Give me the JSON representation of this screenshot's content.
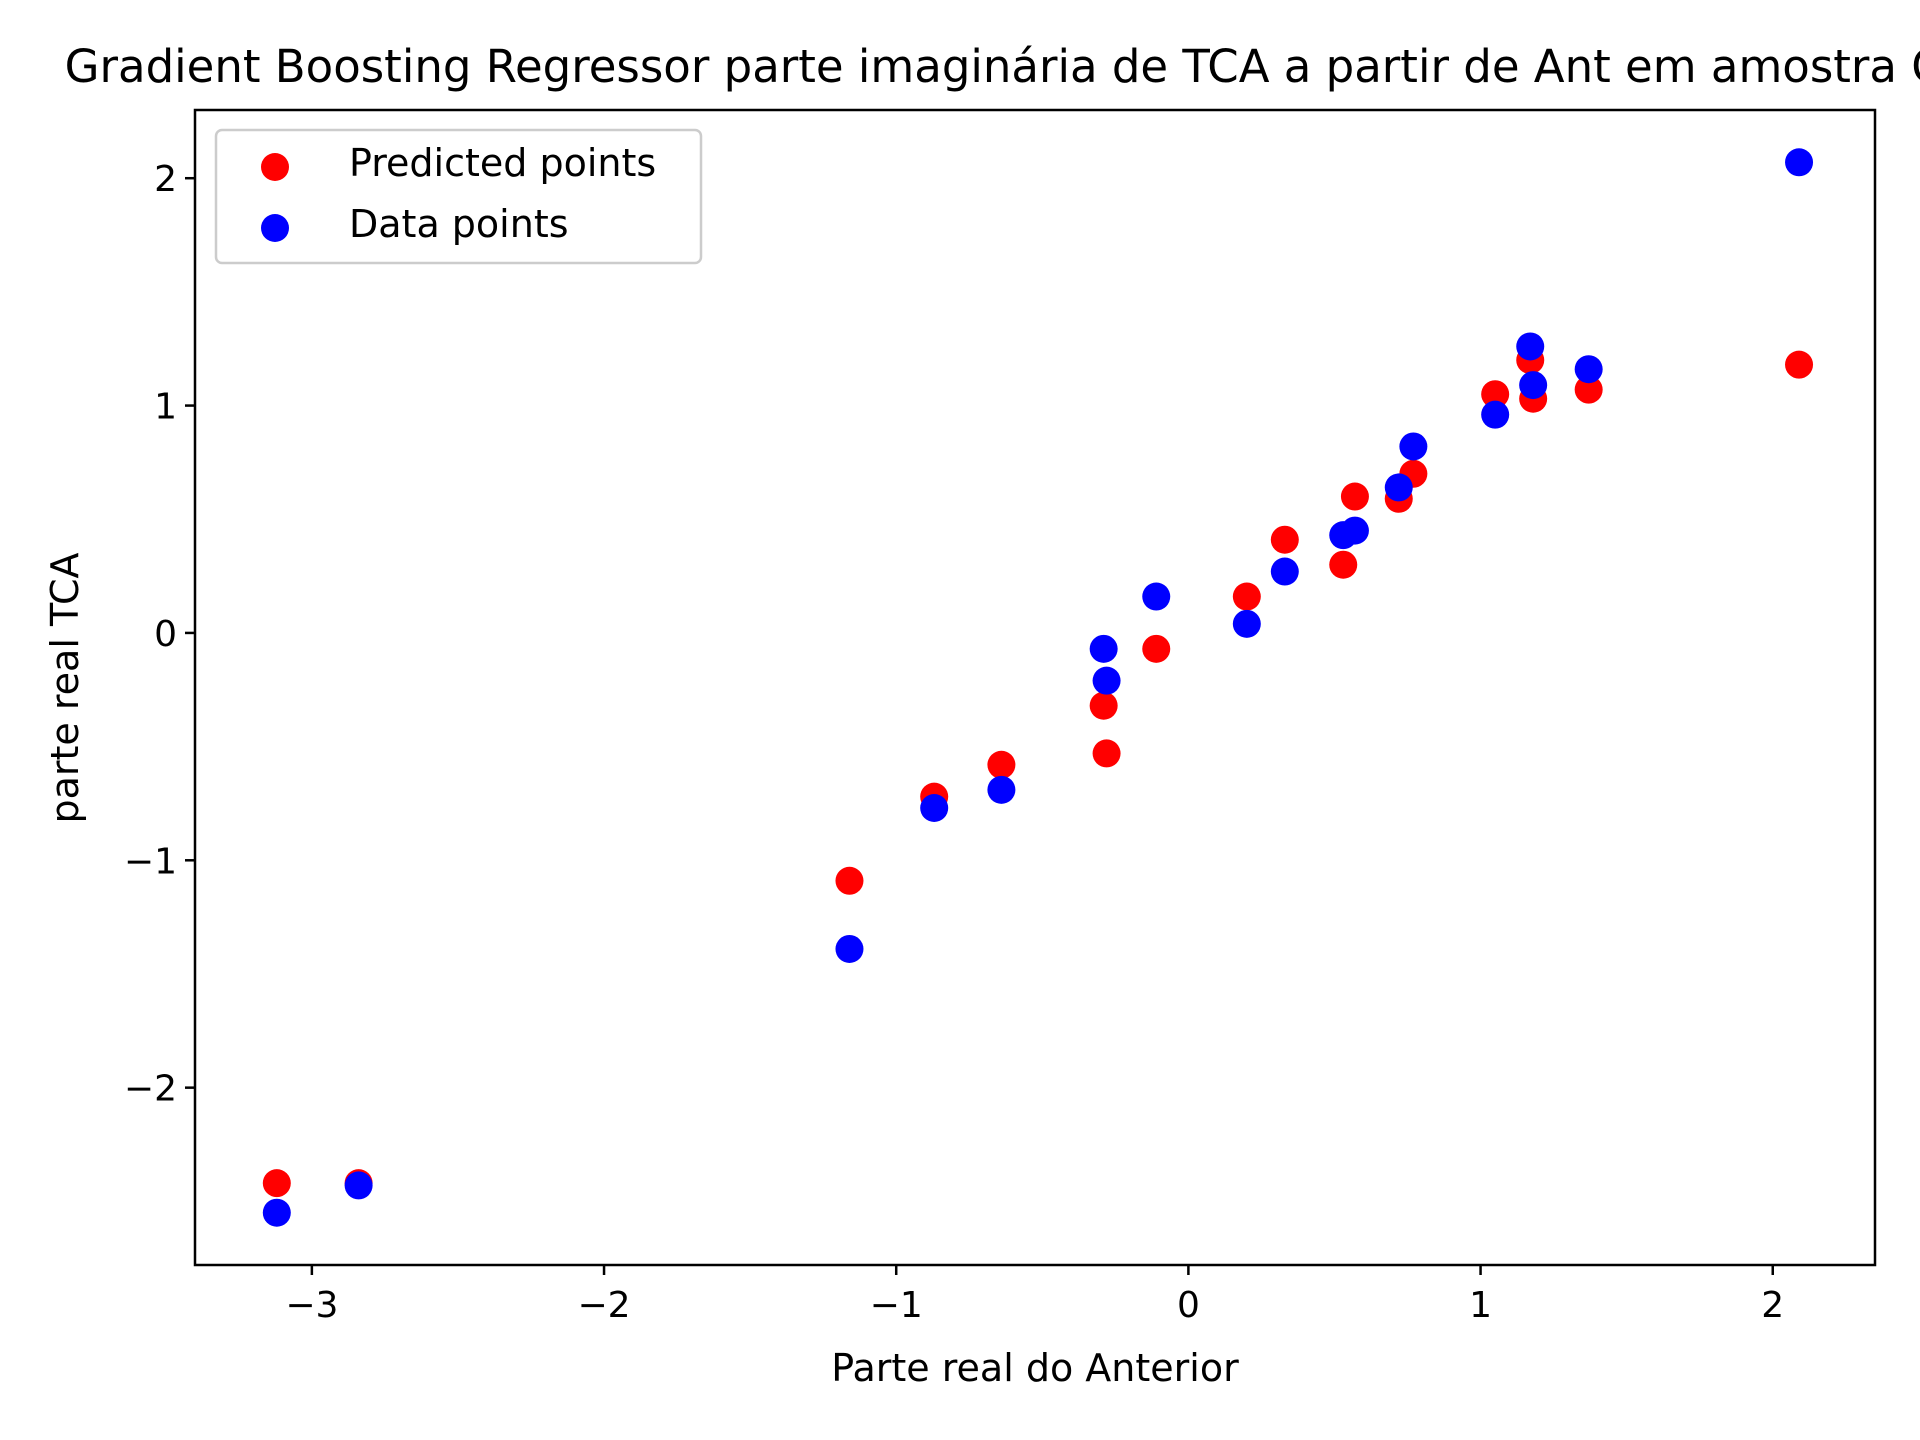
{
  "chart_data": {
    "type": "scatter",
    "title": "Gradient Boosting Regressor parte imaginária de TCA a partir de Ant em amostra  OBS",
    "xlabel": "Parte real do Anterior",
    "ylabel": "parte real TCA",
    "xlim": [
      -3.4,
      2.35
    ],
    "ylim": [
      -2.78,
      2.3
    ],
    "xticks": [
      -3,
      -2,
      -1,
      0,
      1,
      2
    ],
    "xtick_labels": [
      "−3",
      "−2",
      "−1",
      "0",
      "1",
      "2"
    ],
    "yticks": [
      -2,
      -1,
      0,
      1,
      2
    ],
    "ytick_labels": [
      "−2",
      "−1",
      "0",
      "1",
      "2"
    ],
    "grid": false,
    "legend_position": "top-left",
    "series": [
      {
        "name": "Predicted points",
        "color": "#ff0000",
        "points": [
          [
            -3.12,
            -2.42
          ],
          [
            -2.84,
            -2.42
          ],
          [
            -1.16,
            -1.09
          ],
          [
            -0.87,
            -0.72
          ],
          [
            -0.64,
            -0.58
          ],
          [
            -0.29,
            -0.32
          ],
          [
            -0.28,
            -0.53
          ],
          [
            -0.11,
            -0.07
          ],
          [
            0.2,
            0.16
          ],
          [
            0.33,
            0.41
          ],
          [
            0.53,
            0.3
          ],
          [
            0.57,
            0.6
          ],
          [
            0.72,
            0.59
          ],
          [
            0.77,
            0.7
          ],
          [
            1.05,
            1.05
          ],
          [
            1.17,
            1.2
          ],
          [
            1.18,
            1.03
          ],
          [
            1.37,
            1.07
          ],
          [
            2.09,
            1.18
          ]
        ]
      },
      {
        "name": "Data points",
        "color": "#0000ff",
        "points": [
          [
            -3.12,
            -2.55
          ],
          [
            -2.84,
            -2.43
          ],
          [
            -1.16,
            -1.39
          ],
          [
            -0.87,
            -0.77
          ],
          [
            -0.64,
            -0.69
          ],
          [
            -0.29,
            -0.07
          ],
          [
            -0.28,
            -0.21
          ],
          [
            -0.11,
            0.16
          ],
          [
            0.2,
            0.04
          ],
          [
            0.33,
            0.27
          ],
          [
            0.53,
            0.43
          ],
          [
            0.57,
            0.45
          ],
          [
            0.72,
            0.64
          ],
          [
            0.77,
            0.82
          ],
          [
            1.05,
            0.96
          ],
          [
            1.17,
            1.26
          ],
          [
            1.18,
            1.09
          ],
          [
            1.37,
            1.16
          ],
          [
            2.09,
            2.07
          ]
        ]
      }
    ]
  }
}
